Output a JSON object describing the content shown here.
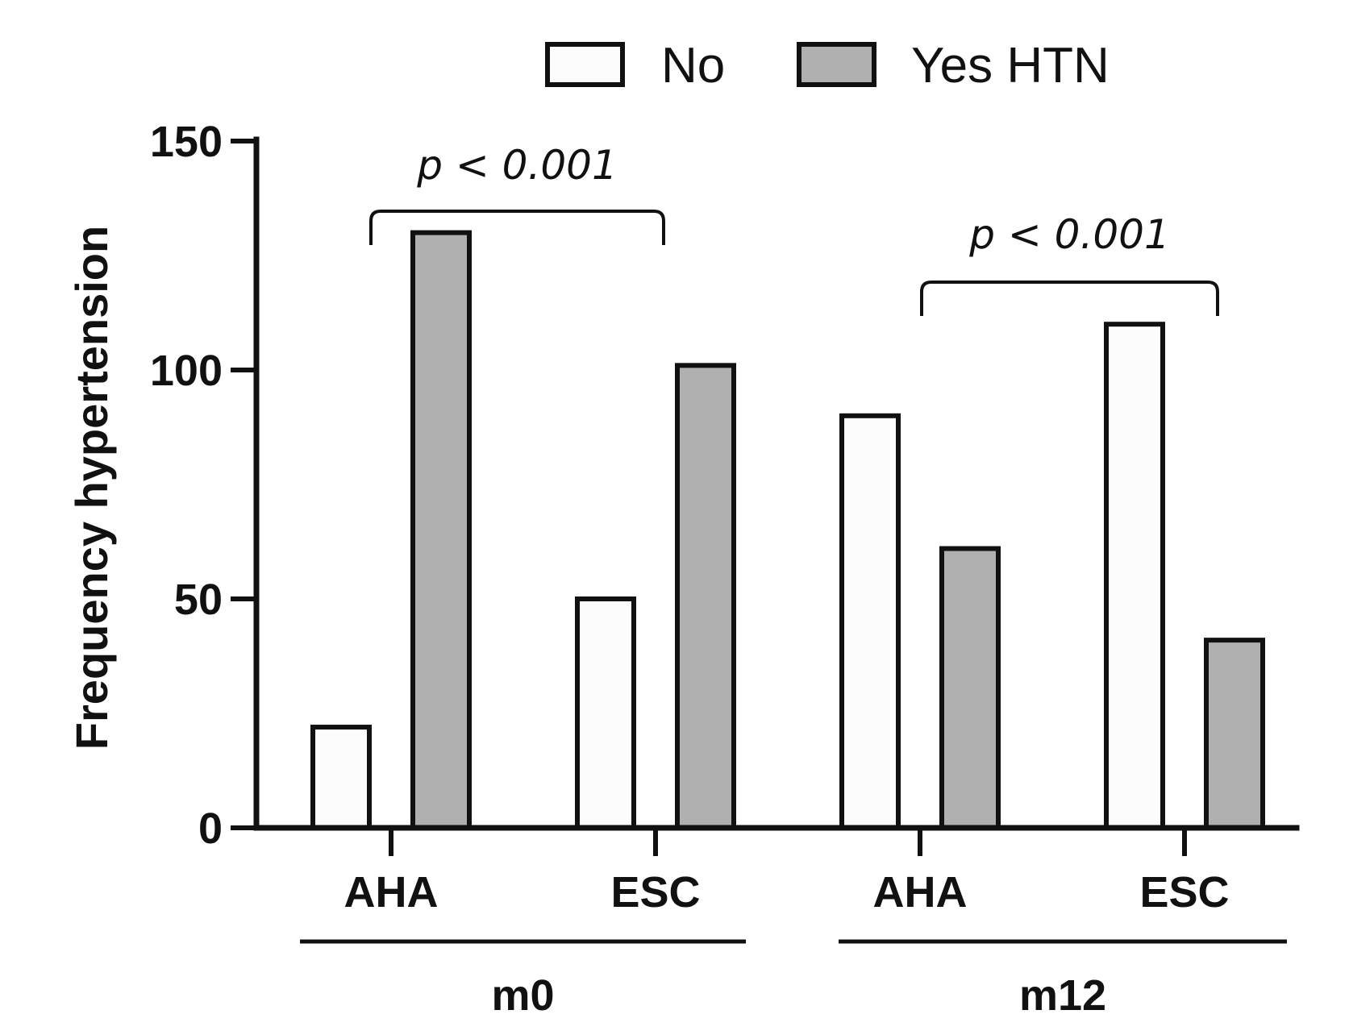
{
  "chart_data": {
    "type": "bar",
    "title": "",
    "xlabel": "",
    "ylabel": "Frequency hypertension",
    "ylim": [
      0,
      150
    ],
    "yticks": [
      0,
      50,
      100,
      150
    ],
    "categories": [
      "AHA",
      "ESC",
      "AHA",
      "ESC"
    ],
    "groups": [
      {
        "label": "m0",
        "categories": [
          "AHA",
          "ESC"
        ]
      },
      {
        "label": "m12",
        "categories": [
          "AHA",
          "ESC"
        ]
      }
    ],
    "series": [
      {
        "name": "No",
        "color": "#fcfcfc",
        "values": [
          22,
          50,
          90,
          110
        ]
      },
      {
        "name": "Yes HTN",
        "color": "#b0b0b0",
        "values": [
          130,
          101,
          61,
          41
        ]
      }
    ],
    "legend": {
      "position": "top-right",
      "entries": [
        "No",
        "Yes HTN"
      ]
    },
    "annotations": [
      {
        "text": "p < 0.001",
        "from_category": "AHA",
        "to_category": "ESC",
        "group": "m0"
      },
      {
        "text": "p < 0.001",
        "from_category": "AHA",
        "to_category": "ESC",
        "group": "m12"
      }
    ],
    "grid": false
  }
}
